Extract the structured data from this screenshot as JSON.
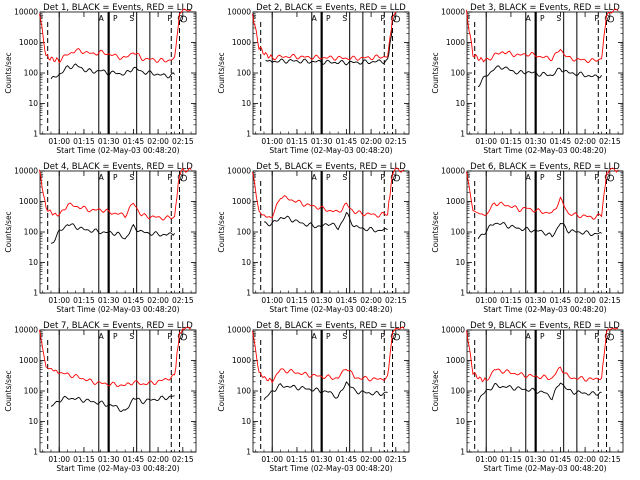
{
  "figure": {
    "time_start_label": "Start Time (02-May-03 00:48:20)",
    "ylabel": "Counts/sec",
    "legend_markers": [
      "F",
      "A",
      "P",
      "S",
      "P",
      "Q"
    ]
  },
  "chart_data": [
    {
      "type": "line",
      "title": "Det 1, BLACK = Events, RED = LLD",
      "ylabel": "Counts/sec",
      "xlabel": "Start Time (02-May-03 00:48:20)",
      "y_scale": "log",
      "ylim": [
        1,
        10000
      ],
      "y_ticks": [
        "1",
        "10",
        "100",
        "1000",
        "10000"
      ],
      "x_ticks": [
        "01:00",
        "01:15",
        "01:30",
        "01:45",
        "02:00",
        "02:15"
      ],
      "series": [
        {
          "color": "#ff0000",
          "x": [
            "00:48",
            "00:52",
            "00:56",
            "01:00",
            "01:05",
            "01:10",
            "01:15",
            "01:20",
            "01:25",
            "01:30",
            "01:35",
            "01:40",
            "01:45",
            "01:50",
            "01:55",
            "02:00",
            "02:05",
            "02:10",
            "02:13",
            "02:15",
            "02:20"
          ],
          "values": [
            10000,
            350,
            280,
            260,
            400,
            550,
            500,
            420,
            480,
            420,
            350,
            300,
            500,
            300,
            280,
            260,
            250,
            300,
            8000,
            11000,
            11000
          ]
        },
        {
          "color": "#000000",
          "x": [
            "00:55",
            "01:00",
            "01:05",
            "01:10",
            "01:15",
            "01:20",
            "01:25",
            "01:30",
            "01:35",
            "01:40",
            "01:45",
            "01:50",
            "01:55",
            "02:00",
            "02:05",
            "02:10"
          ],
          "values": [
            60,
            90,
            150,
            180,
            130,
            110,
            120,
            100,
            100,
            90,
            150,
            110,
            100,
            90,
            80,
            90
          ]
        }
      ]
    },
    {
      "type": "line",
      "title": "Det 2, BLACK = Events, RED = LLD",
      "ylabel": "Counts/sec",
      "xlabel": "Start Time (02-May-03 00:48:20)",
      "y_scale": "log",
      "ylim": [
        1,
        10000
      ],
      "y_ticks": [
        "1",
        "10",
        "100",
        "1000",
        "10000"
      ],
      "x_ticks": [
        "01:00",
        "01:15",
        "01:30",
        "01:45",
        "02:00",
        "02:15"
      ],
      "series": [
        {
          "color": "#ff0000",
          "x": [
            "00:48",
            "00:52",
            "00:56",
            "01:00",
            "01:10",
            "01:20",
            "01:30",
            "01:40",
            "01:50",
            "02:00",
            "02:10",
            "02:13",
            "02:15"
          ],
          "values": [
            9000,
            700,
            400,
            320,
            350,
            330,
            320,
            310,
            300,
            320,
            350,
            6000,
            10000
          ]
        },
        {
          "color": "#000000",
          "x": [
            "00:56",
            "01:00",
            "01:10",
            "01:20",
            "01:30",
            "01:40",
            "01:50",
            "02:00",
            "02:10",
            "02:13"
          ],
          "values": [
            260,
            240,
            250,
            240,
            230,
            220,
            220,
            230,
            250,
            3000
          ]
        }
      ]
    },
    {
      "type": "line",
      "title": "Det 3, BLACK = Events, RED = LLD",
      "ylabel": "Counts/sec",
      "xlabel": "Start Time (02-May-03 00:48:20)",
      "y_scale": "log",
      "ylim": [
        1,
        10000
      ],
      "y_ticks": [
        "1",
        "10",
        "100",
        "1000",
        "10000"
      ],
      "x_ticks": [
        "01:00",
        "01:15",
        "01:30",
        "01:45",
        "02:00",
        "02:15"
      ],
      "series": [
        {
          "color": "#ff0000",
          "x": [
            "00:48",
            "00:52",
            "00:56",
            "01:00",
            "01:05",
            "01:10",
            "01:15",
            "01:20",
            "01:25",
            "01:30",
            "01:35",
            "01:40",
            "01:45",
            "01:50",
            "01:55",
            "02:00",
            "02:05",
            "02:10",
            "02:13",
            "02:15",
            "02:20"
          ],
          "values": [
            10000,
            400,
            280,
            260,
            380,
            500,
            420,
            380,
            420,
            380,
            320,
            300,
            600,
            300,
            280,
            260,
            250,
            300,
            8000,
            11000,
            11000
          ]
        },
        {
          "color": "#000000",
          "x": [
            "00:55",
            "01:00",
            "01:05",
            "01:10",
            "01:15",
            "01:20",
            "01:25",
            "01:30",
            "01:35",
            "01:40",
            "01:45",
            "01:50",
            "01:55",
            "02:00",
            "02:05",
            "02:10"
          ],
          "values": [
            40,
            80,
            140,
            160,
            120,
            100,
            110,
            95,
            90,
            85,
            140,
            100,
            95,
            85,
            75,
            85
          ]
        }
      ]
    },
    {
      "type": "line",
      "title": "Det 4, BLACK = Events, RED = LLD",
      "ylabel": "Counts/sec",
      "xlabel": "Start Time (02-May-03 00:48:20)",
      "y_scale": "log",
      "ylim": [
        1,
        10000
      ],
      "y_ticks": [
        "1",
        "10",
        "100",
        "1000",
        "10000"
      ],
      "x_ticks": [
        "01:00",
        "01:15",
        "01:30",
        "01:45",
        "02:00",
        "02:15"
      ],
      "series": [
        {
          "color": "#ff0000",
          "x": [
            "00:48",
            "00:52",
            "00:56",
            "01:00",
            "01:05",
            "01:10",
            "01:15",
            "01:20",
            "01:25",
            "01:30",
            "01:35",
            "01:40",
            "01:45",
            "01:50",
            "01:55",
            "02:00",
            "02:05",
            "02:10",
            "02:13",
            "02:15",
            "02:20"
          ],
          "values": [
            10000,
            600,
            400,
            350,
            800,
            700,
            600,
            500,
            550,
            450,
            400,
            350,
            900,
            350,
            320,
            300,
            280,
            320,
            8000,
            11000,
            11000
          ]
        },
        {
          "color": "#000000",
          "x": [
            "00:55",
            "01:00",
            "01:05",
            "01:10",
            "01:15",
            "01:20",
            "01:25",
            "01:30",
            "01:35",
            "01:40",
            "01:45",
            "01:50",
            "01:55",
            "02:00",
            "02:05",
            "02:10"
          ],
          "values": [
            40,
            100,
            180,
            150,
            120,
            110,
            100,
            95,
            90,
            60,
            150,
            100,
            90,
            85,
            80,
            90
          ]
        }
      ]
    },
    {
      "type": "line",
      "title": "Det 5, BLACK = Events, RED = LLD",
      "ylabel": "Counts/sec",
      "xlabel": "Start Time (02-May-03 00:48:20)",
      "y_scale": "log",
      "ylim": [
        1,
        10000
      ],
      "y_ticks": [
        "1",
        "10",
        "100",
        "1000",
        "10000"
      ],
      "x_ticks": [
        "01:00",
        "01:15",
        "01:30",
        "01:45",
        "02:00",
        "02:15"
      ],
      "series": [
        {
          "color": "#ff0000",
          "x": [
            "00:48",
            "00:52",
            "00:56",
            "01:00",
            "01:05",
            "01:10",
            "01:15",
            "01:20",
            "01:25",
            "01:30",
            "01:35",
            "01:40",
            "01:45",
            "01:50",
            "01:55",
            "02:00",
            "02:05",
            "02:10",
            "02:13",
            "02:15",
            "02:20"
          ],
          "values": [
            10000,
            450,
            320,
            300,
            1500,
            1200,
            1000,
            800,
            700,
            600,
            500,
            450,
            800,
            450,
            400,
            380,
            350,
            400,
            8000,
            11000,
            11000
          ]
        },
        {
          "color": "#000000",
          "x": [
            "00:55",
            "01:00",
            "01:05",
            "01:10",
            "01:15",
            "01:20",
            "01:25",
            "01:30",
            "01:35",
            "01:40",
            "01:45",
            "01:50",
            "01:55",
            "02:00",
            "02:05",
            "02:10"
          ],
          "values": [
            200,
            180,
            300,
            280,
            220,
            180,
            160,
            150,
            200,
            130,
            400,
            150,
            130,
            120,
            110,
            120
          ]
        }
      ]
    },
    {
      "type": "line",
      "title": "Det 6, BLACK = Events, RED = LLD",
      "ylabel": "Counts/sec",
      "xlabel": "Start Time (02-May-03 00:48:20)",
      "y_scale": "log",
      "ylim": [
        1,
        10000
      ],
      "y_ticks": [
        "1",
        "10",
        "100",
        "1000",
        "10000"
      ],
      "x_ticks": [
        "01:00",
        "01:15",
        "01:30",
        "01:45",
        "02:00",
        "02:15"
      ],
      "series": [
        {
          "color": "#ff0000",
          "x": [
            "00:48",
            "00:52",
            "00:56",
            "01:00",
            "01:05",
            "01:10",
            "01:15",
            "01:20",
            "01:25",
            "01:30",
            "01:35",
            "01:40",
            "01:45",
            "01:50",
            "01:55",
            "02:00",
            "02:05",
            "02:10",
            "02:13",
            "02:15",
            "02:20"
          ],
          "values": [
            10000,
            500,
            400,
            350,
            900,
            800,
            700,
            550,
            600,
            500,
            450,
            400,
            1200,
            400,
            350,
            330,
            300,
            350,
            8000,
            11000,
            11000
          ]
        },
        {
          "color": "#000000",
          "x": [
            "00:55",
            "01:00",
            "01:05",
            "01:10",
            "01:15",
            "01:20",
            "01:25",
            "01:30",
            "01:35",
            "01:40",
            "01:45",
            "01:50",
            "01:55",
            "02:00",
            "02:05",
            "02:10"
          ],
          "values": [
            60,
            110,
            200,
            180,
            150,
            130,
            120,
            110,
            100,
            70,
            200,
            110,
            100,
            95,
            85,
            90
          ]
        }
      ]
    },
    {
      "type": "line",
      "title": "Det 7, BLACK = Events, RED = LLD",
      "ylabel": "Counts/sec",
      "xlabel": "Start Time (02-May-03 00:48:20)",
      "y_scale": "log",
      "ylim": [
        1,
        10000
      ],
      "y_ticks": [
        "1",
        "10",
        "100",
        "1000",
        "10000"
      ],
      "x_ticks": [
        "01:00",
        "01:15",
        "01:30",
        "01:45",
        "02:00",
        "02:15"
      ],
      "series": [
        {
          "color": "#ff0000",
          "x": [
            "00:48",
            "00:52",
            "00:56",
            "01:00",
            "01:05",
            "01:10",
            "01:15",
            "01:20",
            "01:25",
            "01:30",
            "01:35",
            "01:40",
            "01:45",
            "01:50",
            "01:55",
            "02:00",
            "02:05",
            "02:10",
            "02:13",
            "02:15",
            "02:20"
          ],
          "values": [
            10000,
            600,
            500,
            400,
            350,
            300,
            250,
            200,
            180,
            170,
            160,
            150,
            200,
            170,
            180,
            200,
            250,
            300,
            8000,
            11000,
            11000
          ]
        },
        {
          "color": "#000000",
          "x": [
            "00:55",
            "01:00",
            "01:05",
            "01:10",
            "01:15",
            "01:20",
            "01:25",
            "01:30",
            "01:35",
            "01:40",
            "01:45",
            "01:50",
            "01:55",
            "02:00",
            "02:05",
            "02:10"
          ],
          "values": [
            30,
            50,
            60,
            55,
            50,
            45,
            40,
            35,
            30,
            20,
            60,
            45,
            50,
            55,
            60,
            70
          ]
        }
      ]
    },
    {
      "type": "line",
      "title": "Det 8, BLACK = Events, RED = LLD",
      "ylabel": "Counts/sec",
      "xlabel": "Start Time (02-May-03 00:48:20)",
      "y_scale": "log",
      "ylim": [
        1,
        10000
      ],
      "y_ticks": [
        "1",
        "10",
        "100",
        "1000",
        "10000"
      ],
      "x_ticks": [
        "01:00",
        "01:15",
        "01:30",
        "01:45",
        "02:00",
        "02:15"
      ],
      "series": [
        {
          "color": "#ff0000",
          "x": [
            "00:48",
            "00:52",
            "00:56",
            "01:00",
            "01:05",
            "01:10",
            "01:15",
            "01:20",
            "01:25",
            "01:30",
            "01:35",
            "01:40",
            "01:45",
            "01:50",
            "01:55",
            "02:00",
            "02:05",
            "02:10",
            "02:13",
            "02:15",
            "02:20"
          ],
          "values": [
            10000,
            400,
            250,
            220,
            500,
            450,
            400,
            350,
            320,
            300,
            280,
            260,
            600,
            280,
            260,
            250,
            240,
            280,
            8000,
            11000,
            11000
          ]
        },
        {
          "color": "#000000",
          "x": [
            "00:55",
            "01:00",
            "01:05",
            "01:10",
            "01:15",
            "01:20",
            "01:25",
            "01:30",
            "01:35",
            "01:40",
            "01:45",
            "01:50",
            "01:55",
            "02:00",
            "02:05",
            "02:10"
          ],
          "values": [
            50,
            100,
            150,
            140,
            130,
            120,
            110,
            100,
            90,
            60,
            200,
            100,
            90,
            85,
            80,
            90
          ]
        }
      ]
    },
    {
      "type": "line",
      "title": "Det 9, BLACK = Events, RED = LLD",
      "ylabel": "Counts/sec",
      "xlabel": "Start Time (02-May-03 00:48:20)",
      "y_scale": "log",
      "ylim": [
        1,
        10000
      ],
      "y_ticks": [
        "1",
        "10",
        "100",
        "1000",
        "10000"
      ],
      "x_ticks": [
        "01:00",
        "01:15",
        "01:30",
        "01:45",
        "02:00",
        "02:15"
      ],
      "series": [
        {
          "color": "#ff0000",
          "x": [
            "00:48",
            "00:52",
            "00:56",
            "01:00",
            "01:05",
            "01:10",
            "01:15",
            "01:20",
            "01:25",
            "01:30",
            "01:35",
            "01:40",
            "01:45",
            "01:50",
            "01:55",
            "02:00",
            "02:05",
            "02:10",
            "02:13",
            "02:15",
            "02:20"
          ],
          "values": [
            10000,
            400,
            250,
            220,
            500,
            450,
            400,
            350,
            320,
            300,
            280,
            260,
            600,
            280,
            260,
            250,
            240,
            280,
            8000,
            11000,
            11000
          ]
        },
        {
          "color": "#000000",
          "x": [
            "00:55",
            "01:00",
            "01:05",
            "01:10",
            "01:15",
            "01:20",
            "01:25",
            "01:30",
            "01:35",
            "01:40",
            "01:45",
            "01:50",
            "01:55",
            "02:00",
            "02:05",
            "02:10"
          ],
          "values": [
            50,
            100,
            150,
            140,
            130,
            120,
            110,
            100,
            90,
            60,
            200,
            100,
            90,
            85,
            80,
            90
          ]
        }
      ]
    }
  ]
}
